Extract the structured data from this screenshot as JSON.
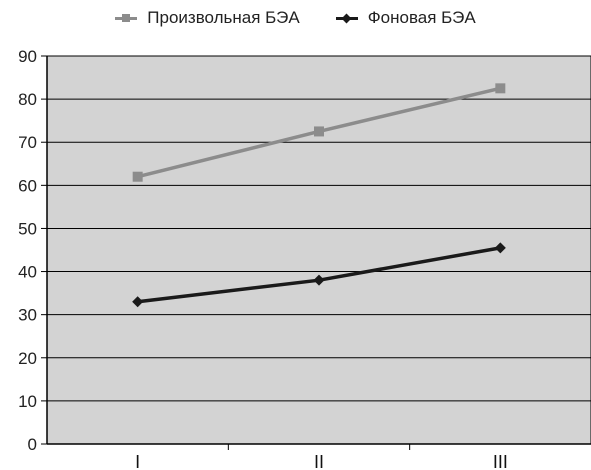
{
  "chart_data": {
    "type": "line",
    "categories": [
      "I",
      "II",
      "III"
    ],
    "series": [
      {
        "name": "Произвольная БЭА",
        "values": [
          62,
          72.5,
          82.5
        ],
        "color": "#8c8c8c",
        "marker": "square"
      },
      {
        "name": "Фоновая БЭА",
        "values": [
          33,
          38,
          45.5
        ],
        "color": "#1a1a1a",
        "marker": "diamond"
      }
    ],
    "ylim": [
      0,
      90
    ],
    "yticks": [
      0,
      10,
      20,
      30,
      40,
      50,
      60,
      70,
      80,
      90
    ],
    "grid": true,
    "plot_background": "#d3d3d3",
    "legend_position": "top"
  }
}
